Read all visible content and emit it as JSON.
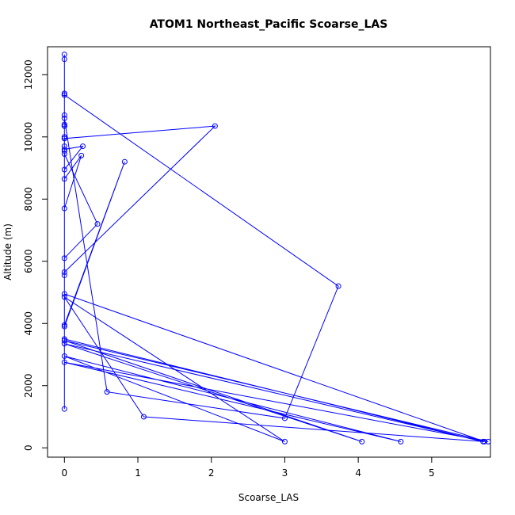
{
  "chart_data": {
    "type": "line",
    "title": "ATOM1 Northeast_Pacific Scoarse_LAS",
    "xlabel": "Scoarse_LAS",
    "ylabel": "Altitude (m)",
    "xlim": [
      -0.23,
      5.8
    ],
    "ylim": [
      -300,
      12900
    ],
    "xticks": [
      0,
      1,
      2,
      3,
      4,
      5
    ],
    "yticks": [
      0,
      2000,
      4000,
      6000,
      8000,
      10000,
      12000
    ],
    "grid": false,
    "legend": "none",
    "color": "#0000FF",
    "markers": "open-circle",
    "series": [
      {
        "x": [
          0,
          0,
          0,
          0,
          0,
          0,
          0,
          0,
          0,
          0.25,
          0,
          0,
          0,
          0.23,
          0,
          0,
          0,
          0.45,
          0,
          0,
          0,
          2.05,
          0,
          0,
          0,
          0.82,
          0,
          0,
          3.73,
          3.0,
          0.58,
          0,
          0,
          5.7,
          0,
          4.05,
          0,
          5.77,
          0,
          4.58,
          0,
          3.0,
          0,
          1.08,
          5.72,
          0,
          0,
          0
        ],
        "y": [
          12650,
          11400,
          11350,
          10700,
          10400,
          10350,
          10000,
          9950,
          9600,
          9700,
          8950,
          9550,
          8650,
          9400,
          7700,
          9700,
          9450,
          7200,
          6100,
          10350,
          9950,
          10350,
          5650,
          5550,
          3950,
          9200,
          3900,
          11350,
          5200,
          950,
          1800,
          10600,
          3500,
          200,
          3350,
          200,
          3450,
          200,
          2750,
          200,
          2950,
          200,
          4850,
          1000,
          200,
          4950,
          1250,
          12500
        ]
      }
    ]
  }
}
